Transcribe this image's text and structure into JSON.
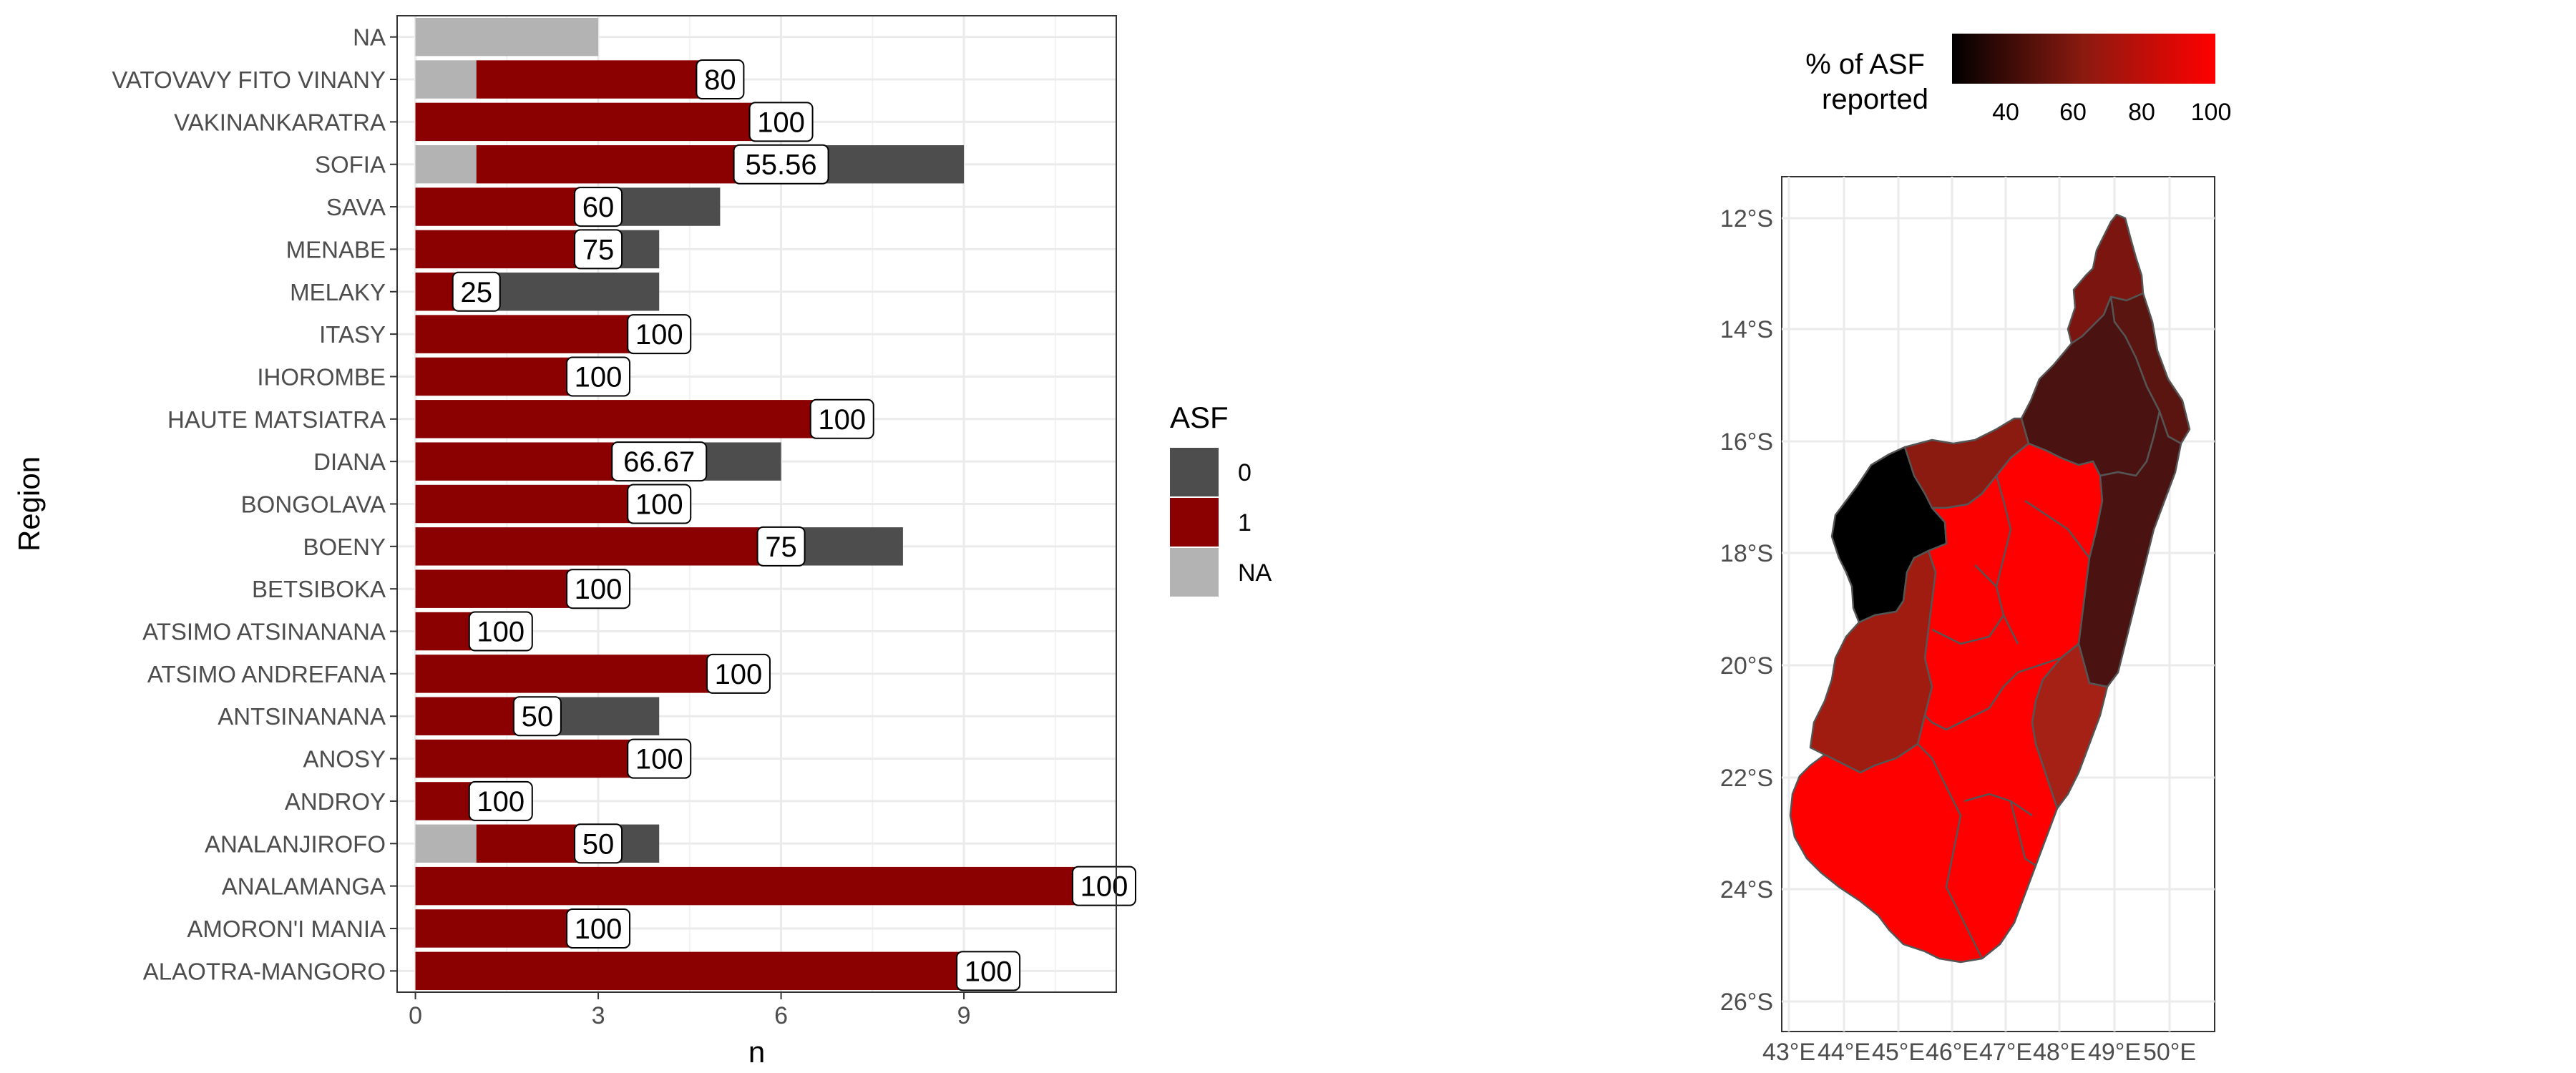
{
  "chart_data": [
    {
      "type": "bar",
      "orientation": "horizontal",
      "stacked": true,
      "xlabel": "n",
      "ylabel": "Region",
      "xlim": [
        -0.3,
        11.5
      ],
      "xticks": [
        0,
        3,
        6,
        9
      ],
      "grid": true,
      "legend": {
        "title": "ASF",
        "position": "right",
        "entries": [
          {
            "label": "0",
            "color": "#4d4d4d"
          },
          {
            "label": "1",
            "color": "#8b0000"
          },
          {
            "label": "NA",
            "color": "#b3b3b3"
          }
        ]
      },
      "colors": {
        "ASF_0": "#4d4d4d",
        "ASF_1": "#8b0000",
        "ASF_NA": "#b3b3b3"
      },
      "categories": [
        "NA",
        "VATOVAVY FITO VINANY",
        "VAKINANKARATRA",
        "SOFIA",
        "SAVA",
        "MENABE",
        "MELAKY",
        "ITASY",
        "IHOROMBE",
        "HAUTE MATSIATRA",
        "DIANA",
        "BONGOLAVA",
        "BOENY",
        "BETSIBOKA",
        "ATSIMO ATSINANANA",
        "ATSIMO ANDREFANA",
        "ANTSINANANA",
        "ANOSY",
        "ANDROY",
        "ANALANJIROFO",
        "ANALAMANGA",
        "AMORON'I MANIA",
        "ALAOTRA-MANGORO"
      ],
      "series": [
        {
          "name": "NA",
          "values": [
            3,
            1,
            0,
            1,
            0,
            0,
            0,
            0,
            0,
            0,
            0,
            0,
            0,
            0,
            0,
            0,
            0,
            0,
            0,
            1,
            0,
            0,
            0
          ]
        },
        {
          "name": "1",
          "values": [
            0,
            4,
            6,
            5,
            3,
            3,
            1,
            4,
            3,
            7,
            4,
            4,
            6,
            3,
            1.4,
            5.3,
            2,
            4,
            1.4,
            2,
            11.3,
            3,
            9.4
          ]
        },
        {
          "name": "0",
          "values": [
            0,
            0,
            0,
            3,
            2,
            1,
            3,
            0,
            0,
            0,
            2,
            0,
            2,
            0,
            0,
            0,
            2,
            0,
            0,
            1,
            0,
            0,
            0
          ]
        }
      ],
      "labels": [
        "",
        "80",
        "100",
        "55.56",
        "60",
        "75",
        "25",
        "100",
        "100",
        "100",
        "66.67",
        "100",
        "75",
        "100",
        "100",
        "100",
        "50",
        "100",
        "100",
        "50",
        "100",
        "100",
        "100"
      ]
    },
    {
      "type": "map",
      "title": "",
      "colorbar": {
        "title_lines": [
          "% of ASF",
          "reported"
        ],
        "ticks": [
          "40",
          "60",
          "80",
          "100"
        ],
        "range": [
          20,
          100
        ],
        "low_color": "#000000",
        "high_color": "#ff0000"
      },
      "lat_ticks": [
        "12°S",
        "14°S",
        "16°S",
        "18°S",
        "20°S",
        "22°S",
        "24°S",
        "26°S"
      ],
      "lon_ticks": [
        "43°E",
        "44°E",
        "45°E",
        "46°E",
        "47°E",
        "48°E",
        "49°E",
        "50°E"
      ],
      "regions": [
        {
          "name": "DIANA",
          "value": 66.67
        },
        {
          "name": "SAVA",
          "value": 60
        },
        {
          "name": "SOFIA",
          "value": 55.56
        },
        {
          "name": "MELAKY",
          "value": 25
        },
        {
          "name": "BOENY",
          "value": 75
        },
        {
          "name": "ANALANJIROFO",
          "value": 50
        },
        {
          "name": "ANTSINANANA",
          "value": 50
        },
        {
          "name": "MENABE",
          "value": 75
        },
        {
          "name": "VATOVAVY FITO VINANY",
          "value": 80
        },
        {
          "name": "ANALAMANGA",
          "value": 100
        },
        {
          "name": "ATSIMO ANDREFANA",
          "value": 100
        }
      ]
    }
  ]
}
